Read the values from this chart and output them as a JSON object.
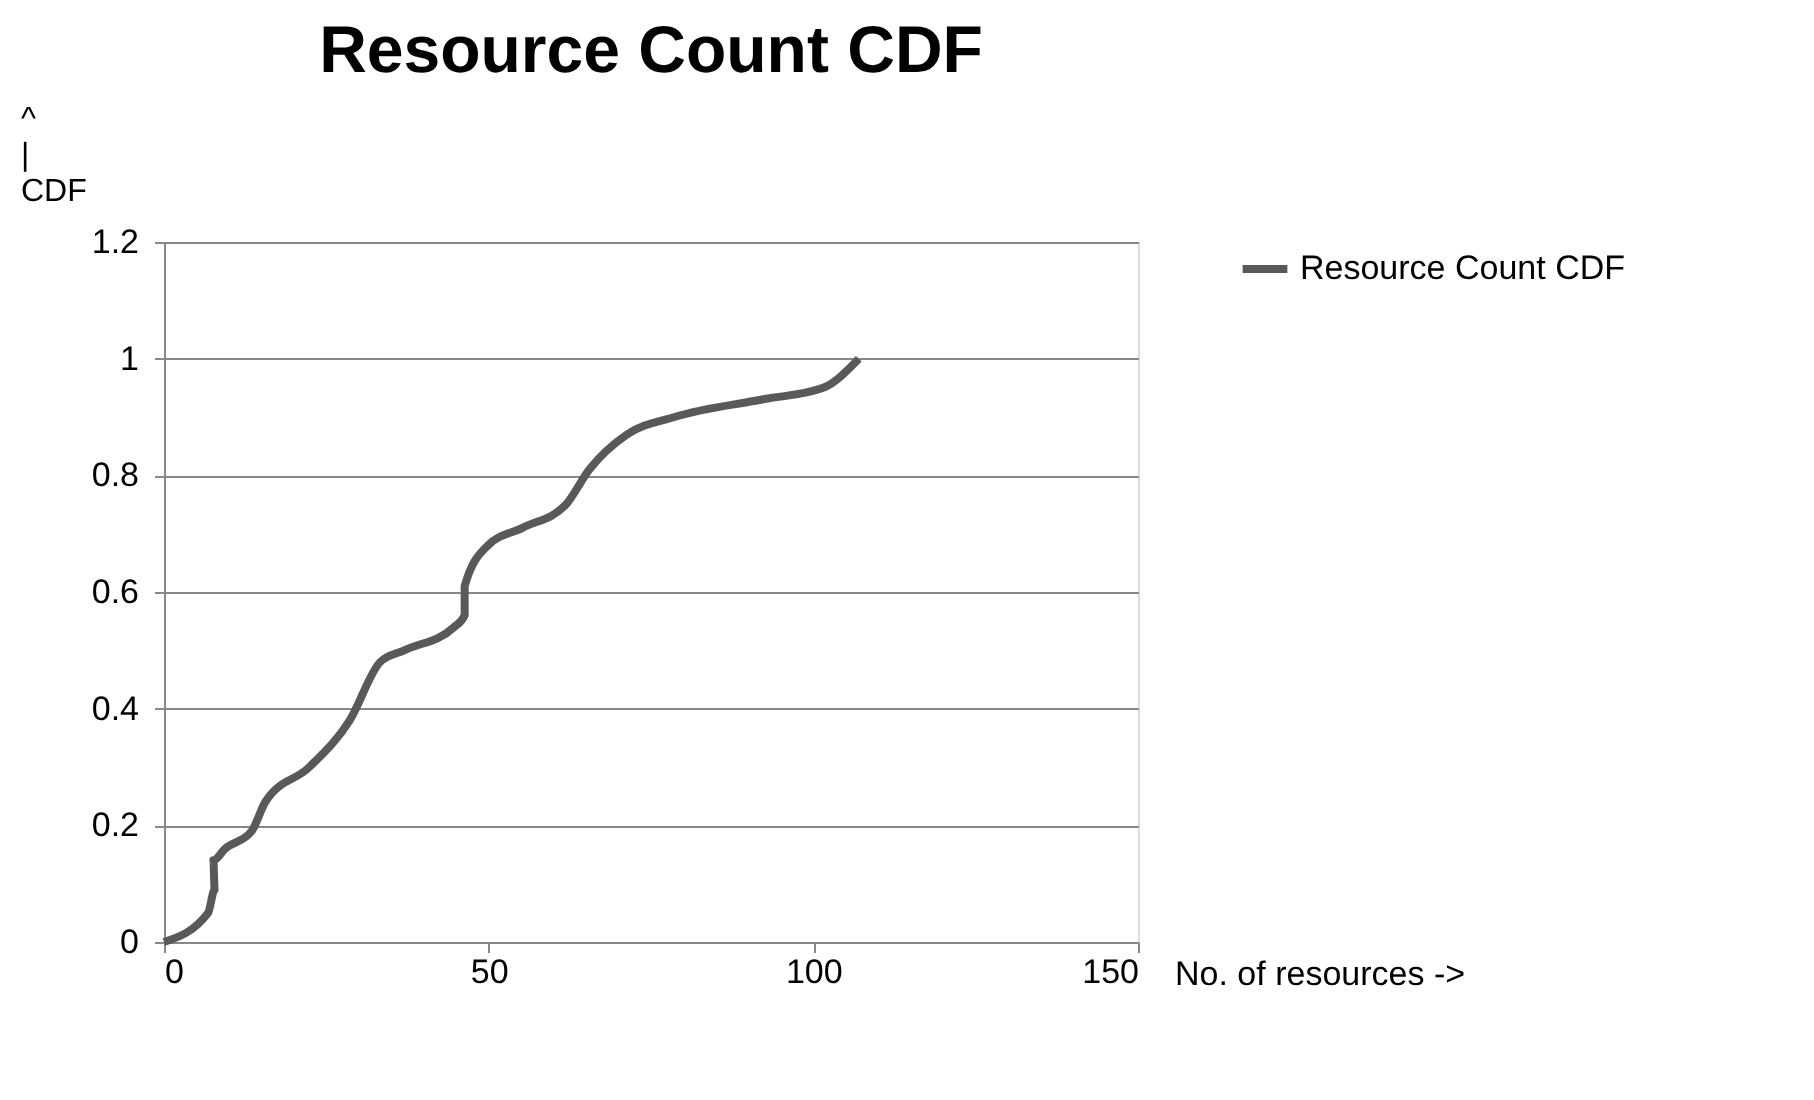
{
  "chart_data": {
    "type": "line",
    "title": "Resource Count CDF",
    "xlabel": "No. of resources ->",
    "ylabel": "^\n|\nCDF",
    "xlim": [
      0,
      150
    ],
    "xticks": [
      0,
      50,
      100,
      150
    ],
    "ylim": [
      0,
      1.2
    ],
    "yticks": [
      0,
      0.2,
      0.4,
      0.6,
      0.8,
      1,
      1.2
    ],
    "grid": "y",
    "legend": "right",
    "marker": "none",
    "line_style": "solid",
    "series": [
      {
        "name": "Resource Count CDF",
        "color": "#595959",
        "x": [
          0,
          6.8,
          7.8,
          7.6,
          9.4,
          13.5,
          15.6,
          22.4,
          28.6,
          33.3,
          37,
          44.7,
          46.3,
          46.3,
          49.9,
          55.2,
          61.9,
          65.5,
          71.3,
          78.6,
          92.1,
          101.5,
          107
        ],
        "values": [
          0,
          0.05,
          0.09,
          0.14,
          0.16,
          0.19,
          0.24,
          0.3,
          0.38,
          0.48,
          0.5,
          0.54,
          0.56,
          0.61,
          0.68,
          0.71,
          0.75,
          0.81,
          0.87,
          0.9,
          0.93,
          0.95,
          1
        ]
      }
    ]
  }
}
